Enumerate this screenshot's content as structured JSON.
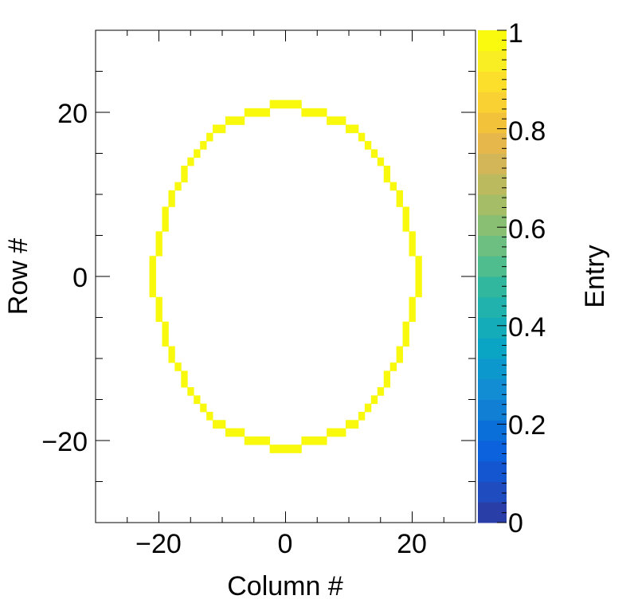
{
  "chart_data": {
    "type": "heatmap",
    "title": "",
    "xlabel": "Column #",
    "ylabel": "Row #",
    "zlabel": "Entry",
    "xlim": [
      -30,
      30
    ],
    "ylim": [
      -30,
      30
    ],
    "zlim": [
      0,
      1
    ],
    "x_ticks": [
      -20,
      0,
      20
    ],
    "y_ticks": [
      -20,
      0,
      20
    ],
    "z_ticks": [
      0,
      0.2,
      0.4,
      0.6,
      0.8,
      1
    ],
    "x_tick_labels": [
      "−20",
      "0",
      "20"
    ],
    "y_tick_labels": [
      "−20",
      "0",
      "20"
    ],
    "z_tick_labels": [
      "0",
      "0.2",
      "0.4",
      "0.6",
      "0.8",
      "1"
    ],
    "cell_value": 1,
    "cell_color": "#f9f90e",
    "palette_colors": [
      "#2a3ea8",
      "#1f4cbe",
      "#1456cf",
      "#0c62dc",
      "#0b6fd9",
      "#1180d4",
      "#128cd2",
      "#0c98cc",
      "#0aa4c4",
      "#15acba",
      "#22b2ad",
      "#31b79e",
      "#4fbd8e",
      "#6cbf80",
      "#89bf72",
      "#a5bd67",
      "#bcba5e",
      "#d3b657",
      "#e6b74a",
      "#f3c23b",
      "#fad132",
      "#fbdf2b",
      "#f9ee23",
      "#f9fa0e"
    ],
    "ring_cells": [
      [
        0,
        21
      ],
      [
        1,
        21
      ],
      [
        -1,
        21
      ],
      [
        2,
        21
      ],
      [
        -2,
        21
      ],
      [
        3,
        20
      ],
      [
        -3,
        20
      ],
      [
        4,
        20
      ],
      [
        -4,
        20
      ],
      [
        5,
        20
      ],
      [
        -5,
        20
      ],
      [
        6,
        20
      ],
      [
        -6,
        20
      ],
      [
        7,
        19
      ],
      [
        -7,
        19
      ],
      [
        8,
        19
      ],
      [
        -8,
        19
      ],
      [
        9,
        19
      ],
      [
        -9,
        19
      ],
      [
        10,
        18
      ],
      [
        -10,
        18
      ],
      [
        11,
        18
      ],
      [
        -11,
        18
      ],
      [
        12,
        17
      ],
      [
        -12,
        17
      ],
      [
        13,
        16
      ],
      [
        -13,
        16
      ],
      [
        14,
        15
      ],
      [
        -14,
        15
      ],
      [
        15,
        14
      ],
      [
        -15,
        14
      ],
      [
        16,
        13
      ],
      [
        -16,
        13
      ],
      [
        16,
        12
      ],
      [
        -16,
        12
      ],
      [
        17,
        11
      ],
      [
        -17,
        11
      ],
      [
        18,
        10
      ],
      [
        -18,
        10
      ],
      [
        18,
        9
      ],
      [
        -18,
        9
      ],
      [
        19,
        8
      ],
      [
        -19,
        8
      ],
      [
        19,
        7
      ],
      [
        -19,
        7
      ],
      [
        19,
        6
      ],
      [
        -19,
        6
      ],
      [
        20,
        5
      ],
      [
        -20,
        5
      ],
      [
        20,
        4
      ],
      [
        -20,
        4
      ],
      [
        20,
        3
      ],
      [
        -20,
        3
      ],
      [
        21,
        2
      ],
      [
        -21,
        2
      ],
      [
        21,
        1
      ],
      [
        -21,
        1
      ],
      [
        21,
        0
      ],
      [
        -21,
        0
      ],
      [
        21,
        -1
      ],
      [
        -21,
        -1
      ],
      [
        21,
        -2
      ],
      [
        -21,
        -2
      ],
      [
        20,
        -3
      ],
      [
        -20,
        -3
      ],
      [
        20,
        -4
      ],
      [
        -20,
        -4
      ],
      [
        20,
        -5
      ],
      [
        -20,
        -5
      ],
      [
        19,
        -6
      ],
      [
        -19,
        -6
      ],
      [
        19,
        -7
      ],
      [
        -19,
        -7
      ],
      [
        19,
        -8
      ],
      [
        -19,
        -8
      ],
      [
        18,
        -9
      ],
      [
        -18,
        -9
      ],
      [
        18,
        -10
      ],
      [
        -18,
        -10
      ],
      [
        17,
        -11
      ],
      [
        -17,
        -11
      ],
      [
        16,
        -12
      ],
      [
        -16,
        -12
      ],
      [
        16,
        -13
      ],
      [
        -16,
        -13
      ],
      [
        15,
        -14
      ],
      [
        -15,
        -14
      ],
      [
        14,
        -15
      ],
      [
        -14,
        -15
      ],
      [
        13,
        -16
      ],
      [
        -13,
        -16
      ],
      [
        12,
        -17
      ],
      [
        -12,
        -17
      ],
      [
        11,
        -18
      ],
      [
        -11,
        -18
      ],
      [
        10,
        -18
      ],
      [
        -10,
        -18
      ],
      [
        9,
        -19
      ],
      [
        -9,
        -19
      ],
      [
        8,
        -19
      ],
      [
        -8,
        -19
      ],
      [
        7,
        -19
      ],
      [
        -7,
        -19
      ],
      [
        6,
        -20
      ],
      [
        -6,
        -20
      ],
      [
        5,
        -20
      ],
      [
        -5,
        -20
      ],
      [
        4,
        -20
      ],
      [
        -4,
        -20
      ],
      [
        3,
        -20
      ],
      [
        -3,
        -20
      ],
      [
        2,
        -21
      ],
      [
        -2,
        -21
      ],
      [
        1,
        -21
      ],
      [
        -1,
        -21
      ],
      [
        0,
        -21
      ]
    ]
  }
}
